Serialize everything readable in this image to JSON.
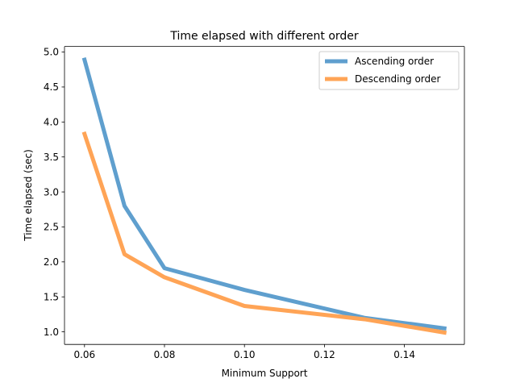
{
  "chart_data": {
    "type": "line",
    "title": "Time elapsed with different order",
    "xlabel": "Minimum Support",
    "ylabel": "Time elapsed (sec)",
    "xlim": [
      0.055,
      0.155
    ],
    "ylim": [
      0.82,
      5.08
    ],
    "x_ticks": [
      0.06,
      0.08,
      0.1,
      0.12,
      0.14
    ],
    "x_tick_labels": [
      "0.06",
      "0.08",
      "0.10",
      "0.12",
      "0.14"
    ],
    "y_ticks": [
      1.0,
      1.5,
      2.0,
      2.5,
      3.0,
      3.5,
      4.0,
      4.5,
      5.0
    ],
    "y_tick_labels": [
      "1.0",
      "1.5",
      "2.0",
      "2.5",
      "3.0",
      "3.5",
      "4.0",
      "4.5",
      "5.0"
    ],
    "grid": false,
    "legend_position": "top-right",
    "x": [
      0.06,
      0.07,
      0.08,
      0.1,
      0.13,
      0.15
    ],
    "series": [
      {
        "name": "Ascending order",
        "color": "#5f9fce",
        "values": [
          4.89,
          2.8,
          1.91,
          1.6,
          1.2,
          1.05
        ]
      },
      {
        "name": "Descending order",
        "color": "#ffa456",
        "values": [
          3.83,
          2.11,
          1.78,
          1.37,
          1.18,
          0.99
        ]
      }
    ]
  }
}
